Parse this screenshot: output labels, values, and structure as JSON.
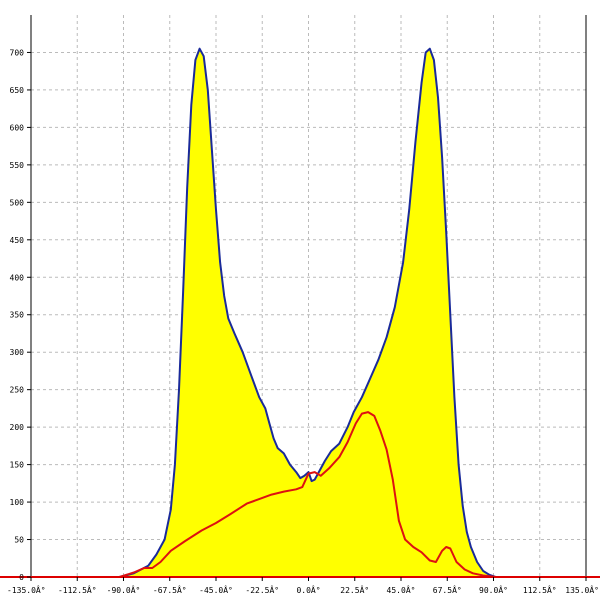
{
  "chart_data": {
    "type": "area",
    "title": "",
    "xlabel": "",
    "ylabel": "",
    "xlim": [
      -135,
      135
    ],
    "ylim": [
      0,
      750
    ],
    "grid": true,
    "x_ticks": [
      -135,
      -112.5,
      -90,
      -67.5,
      -45,
      -22.5,
      0,
      22.5,
      45,
      67.5,
      90,
      112.5,
      135
    ],
    "x_tick_labels": [
      "-135.0Â°",
      "-112.5Â°",
      "-90.0Â°",
      "-67.5Â°",
      "-45.0Â°",
      "-22.5Â°",
      "0.0Â°",
      "22.5Â°",
      "45.0Â°",
      "67.5Â°",
      "90.0Â°",
      "112.5Â°",
      "135.0Â°"
    ],
    "y_ticks": [
      0,
      50,
      100,
      150,
      200,
      250,
      300,
      350,
      400,
      450,
      500,
      550,
      600,
      650,
      700
    ],
    "y_tick_labels": [
      "0",
      "50",
      "100",
      "150",
      "200",
      "250",
      "300",
      "350",
      "400",
      "450",
      "500",
      "550",
      "600",
      "650",
      "700"
    ],
    "colors": {
      "fill": "#ffff00",
      "outline": "#1a2a9a",
      "red_line": "#dd1111",
      "grid": "#bbbbbb",
      "axis": "#000000",
      "baseline": "#dd0000"
    },
    "series": [
      {
        "style": "filled-area",
        "points": [
          [
            -92,
            0
          ],
          [
            -85,
            5
          ],
          [
            -78,
            15
          ],
          [
            -74,
            30
          ],
          [
            -70,
            50
          ],
          [
            -67,
            90
          ],
          [
            -65,
            150
          ],
          [
            -63,
            250
          ],
          [
            -61,
            380
          ],
          [
            -59,
            520
          ],
          [
            -57,
            630
          ],
          [
            -55,
            690
          ],
          [
            -53,
            705
          ],
          [
            -51,
            695
          ],
          [
            -49,
            650
          ],
          [
            -47,
            570
          ],
          [
            -45,
            490
          ],
          [
            -43,
            420
          ],
          [
            -41,
            375
          ],
          [
            -39,
            345
          ],
          [
            -36,
            325
          ],
          [
            -32,
            300
          ],
          [
            -28,
            270
          ],
          [
            -24,
            240
          ],
          [
            -21,
            225
          ],
          [
            -19,
            205
          ],
          [
            -17,
            185
          ],
          [
            -15,
            172
          ],
          [
            -12,
            165
          ],
          [
            -9,
            150
          ],
          [
            -6,
            140
          ],
          [
            -4,
            132
          ],
          [
            -2,
            135
          ],
          [
            0,
            140
          ],
          [
            1.5,
            128
          ],
          [
            3,
            130
          ],
          [
            5,
            140
          ],
          [
            8,
            155
          ],
          [
            11,
            168
          ],
          [
            15,
            178
          ],
          [
            19,
            200
          ],
          [
            22,
            220
          ],
          [
            26,
            240
          ],
          [
            30,
            265
          ],
          [
            34,
            290
          ],
          [
            38,
            320
          ],
          [
            42,
            360
          ],
          [
            46,
            420
          ],
          [
            49,
            490
          ],
          [
            52,
            580
          ],
          [
            55,
            660
          ],
          [
            57,
            700
          ],
          [
            59,
            705
          ],
          [
            61,
            690
          ],
          [
            63,
            640
          ],
          [
            65,
            560
          ],
          [
            67,
            460
          ],
          [
            69,
            350
          ],
          [
            71,
            240
          ],
          [
            73,
            150
          ],
          [
            75,
            95
          ],
          [
            77,
            60
          ],
          [
            79,
            40
          ],
          [
            82,
            20
          ],
          [
            85,
            8
          ],
          [
            88,
            3
          ],
          [
            91,
            0
          ]
        ]
      },
      {
        "style": "line",
        "points": [
          [
            -92,
            0
          ],
          [
            -85,
            6
          ],
          [
            -80,
            12
          ],
          [
            -76,
            12
          ],
          [
            -72,
            20
          ],
          [
            -67,
            35
          ],
          [
            -60,
            48
          ],
          [
            -52,
            62
          ],
          [
            -45,
            72
          ],
          [
            -38,
            84
          ],
          [
            -30,
            98
          ],
          [
            -24,
            104
          ],
          [
            -18,
            110
          ],
          [
            -12,
            114
          ],
          [
            -6,
            117
          ],
          [
            -3,
            120
          ],
          [
            0,
            138
          ],
          [
            3,
            140
          ],
          [
            6,
            135
          ],
          [
            10,
            145
          ],
          [
            15,
            160
          ],
          [
            19,
            180
          ],
          [
            23,
            205
          ],
          [
            26,
            218
          ],
          [
            29,
            220
          ],
          [
            32,
            215
          ],
          [
            35,
            195
          ],
          [
            38,
            170
          ],
          [
            41,
            130
          ],
          [
            44,
            75
          ],
          [
            47,
            50
          ],
          [
            51,
            40
          ],
          [
            55,
            33
          ],
          [
            59,
            22
          ],
          [
            62,
            20
          ],
          [
            65,
            35
          ],
          [
            67,
            40
          ],
          [
            69,
            38
          ],
          [
            72,
            20
          ],
          [
            76,
            10
          ],
          [
            80,
            5
          ],
          [
            85,
            2
          ],
          [
            91,
            0
          ]
        ]
      }
    ]
  }
}
